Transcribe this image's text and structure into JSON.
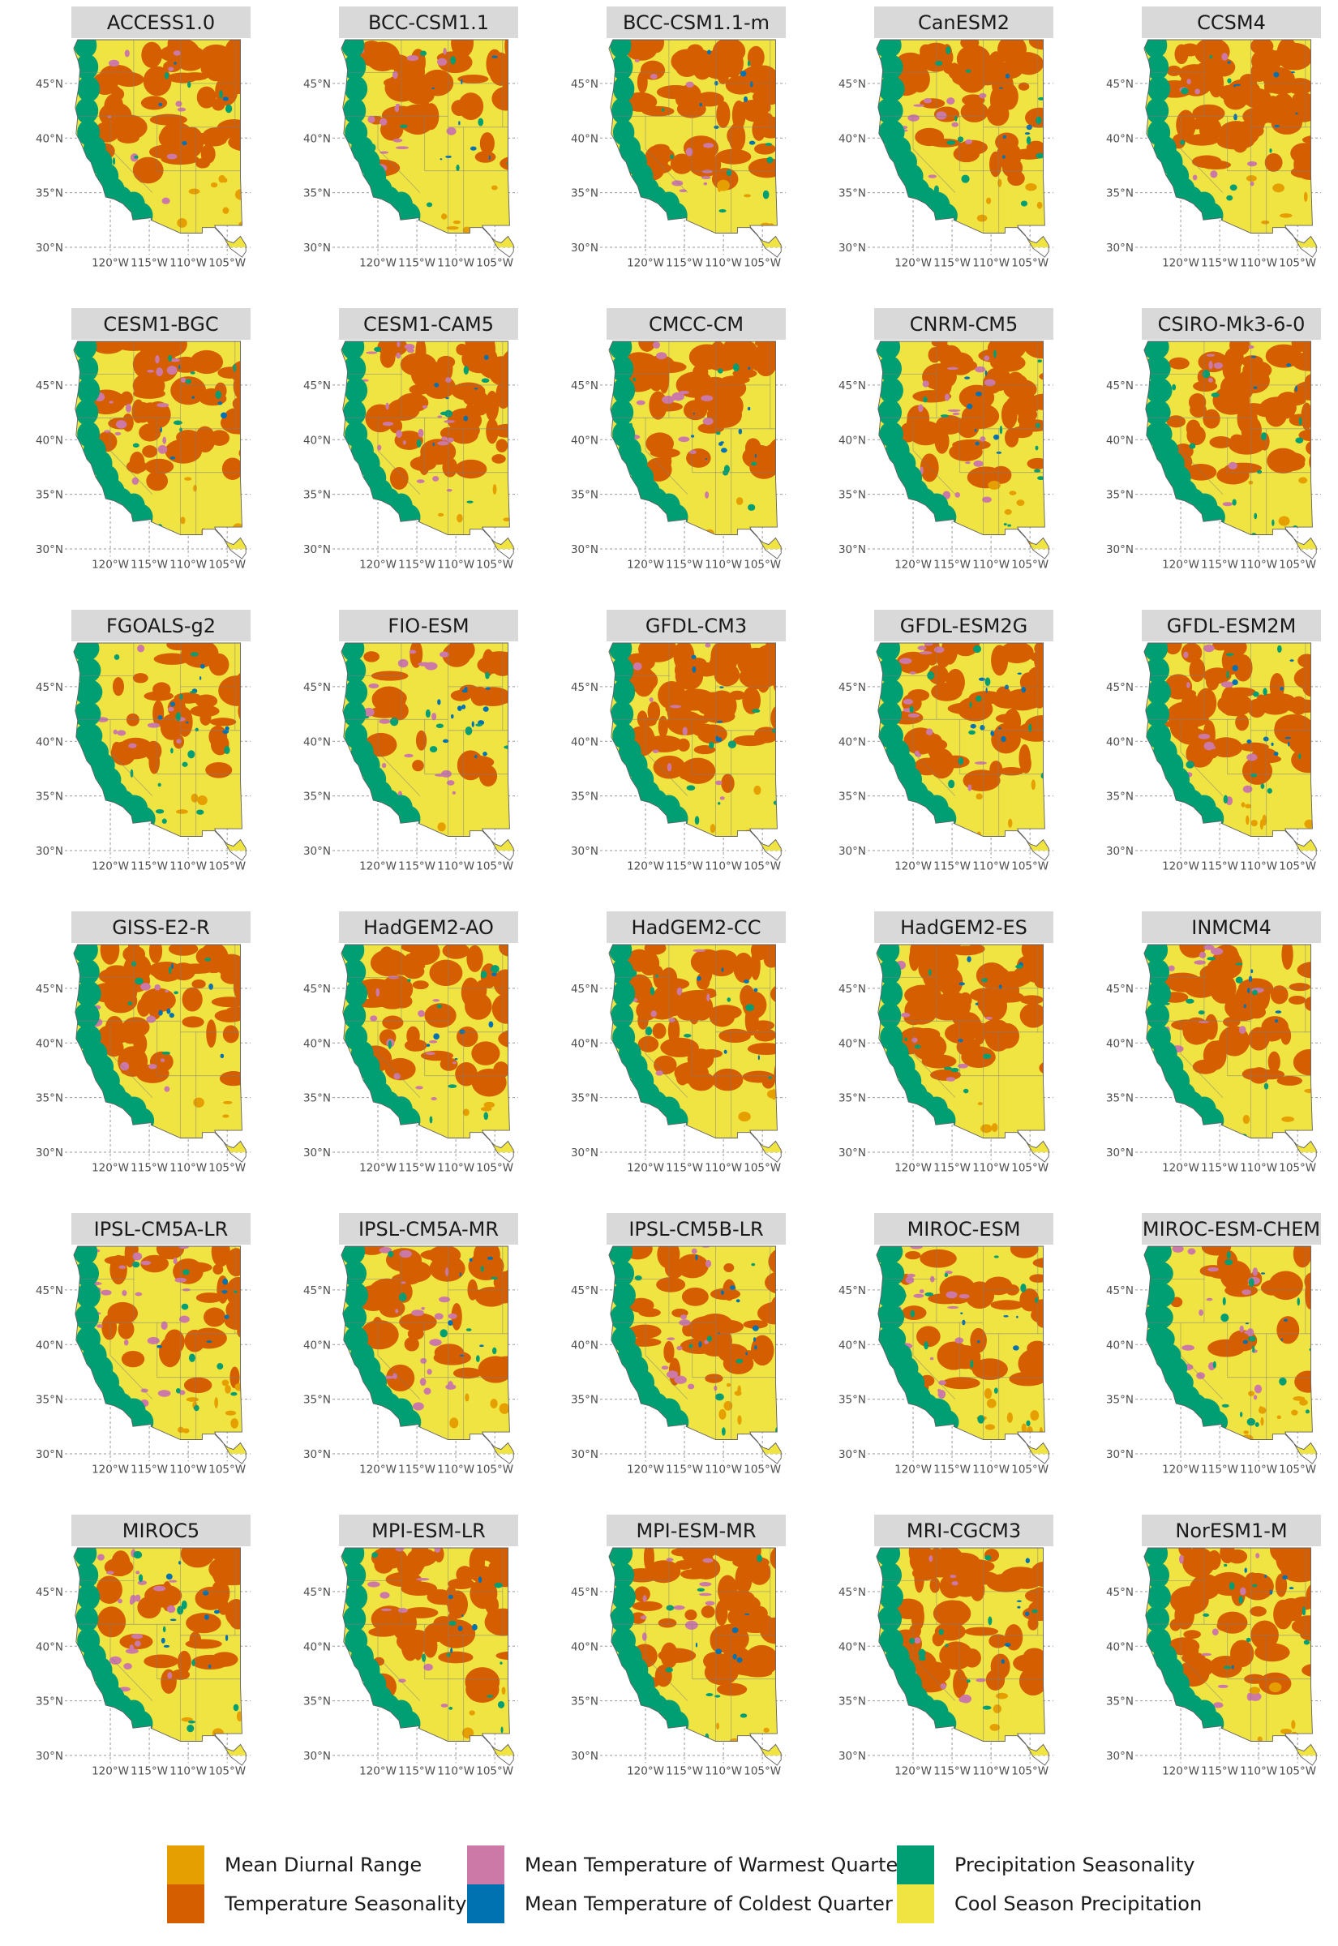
{
  "chart_data": {
    "type": "map",
    "description_free": true,
    "panels": [
      "ACCESS1.0",
      "BCC-CSM1.1",
      "BCC-CSM1.1-m",
      "CanESM2",
      "CCSM4",
      "CESM1-BGC",
      "CESM1-CAM5",
      "CMCC-CM",
      "CNRM-CM5",
      "CSIRO-Mk3-6-0",
      "FGOALS-g2",
      "FIO-ESM",
      "GFDL-CM3",
      "GFDL-ESM2G",
      "GFDL-ESM2M",
      "GISS-E2-R",
      "HadGEM2-AO",
      "HadGEM2-CC",
      "HadGEM2-ES",
      "INMCM4",
      "IPSL-CM5A-LR",
      "IPSL-CM5A-MR",
      "IPSL-CM5B-LR",
      "MIROC-ESM",
      "MIROC-ESM-CHEM",
      "MIROC5",
      "MPI-ESM-LR",
      "MPI-ESM-MR",
      "MRI-CGCM3",
      "NorESM1-M"
    ],
    "x_ticks": [
      "120°W",
      "115°W",
      "110°W",
      "105°W"
    ],
    "y_ticks": [
      "45°N",
      "40°N",
      "35°N",
      "30°N"
    ],
    "grid": true,
    "legend_position": "bottom",
    "legend": [
      {
        "label": "Mean Diurnal Range",
        "color": "#E69F00"
      },
      {
        "label": "Temperature Seasonality",
        "color": "#D55E00"
      },
      {
        "label": "Mean Temperature of Warmest Quarter",
        "color": "#CC79A7"
      },
      {
        "label": "Mean Temperature of Coldest Quarter",
        "color": "#0072B2"
      },
      {
        "label": "Precipitation Seasonality",
        "color": "#009E73"
      },
      {
        "label": "Cool Season Precipitation",
        "color": "#F0E442"
      }
    ]
  }
}
